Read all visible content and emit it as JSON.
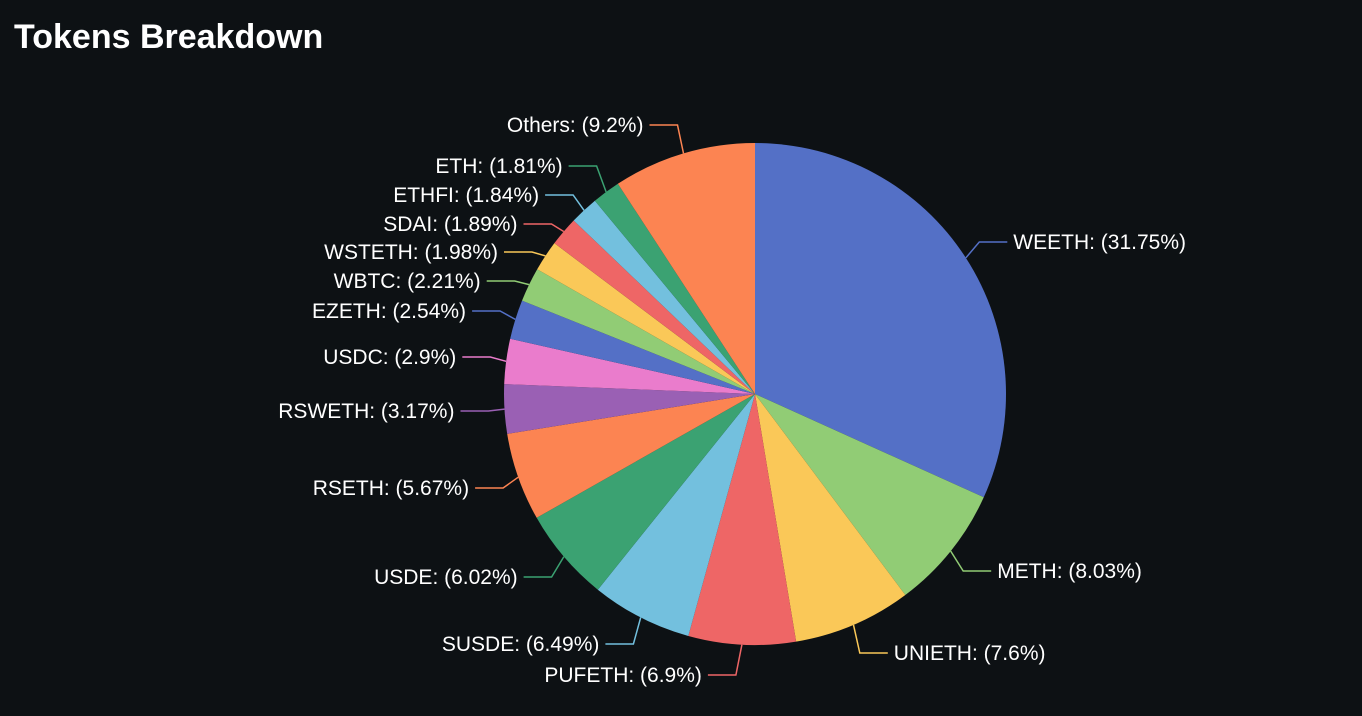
{
  "header": {
    "title": "Tokens Breakdown"
  },
  "chart_data": {
    "type": "pie",
    "title": "Tokens Breakdown",
    "start_angle_deg": 90,
    "direction": "clockwise",
    "slices": [
      {
        "label": "WEETH",
        "value": 31.75,
        "display": "WEETH: (31.75%)",
        "color": "#5470c6"
      },
      {
        "label": "METH",
        "value": 8.03,
        "display": "METH: (8.03%)",
        "color": "#91cc75"
      },
      {
        "label": "UNIETH",
        "value": 7.6,
        "display": "UNIETH: (7.6%)",
        "color": "#fac858"
      },
      {
        "label": "PUFETH",
        "value": 6.9,
        "display": "PUFETH: (6.9%)",
        "color": "#ee6666"
      },
      {
        "label": "SUSDE",
        "value": 6.49,
        "display": "SUSDE: (6.49%)",
        "color": "#73c0de"
      },
      {
        "label": "USDE",
        "value": 6.02,
        "display": "USDE: (6.02%)",
        "color": "#3ba272"
      },
      {
        "label": "RSETH",
        "value": 5.67,
        "display": "RSETH: (5.67%)",
        "color": "#fc8452"
      },
      {
        "label": "RSWETH",
        "value": 3.17,
        "display": "RSWETH: (3.17%)",
        "color": "#9a60b4"
      },
      {
        "label": "USDC",
        "value": 2.9,
        "display": "USDC: (2.9%)",
        "color": "#ea7ccc"
      },
      {
        "label": "EZETH",
        "value": 2.54,
        "display": "EZETH: (2.54%)",
        "color": "#5470c6"
      },
      {
        "label": "WBTC",
        "value": 2.21,
        "display": "WBTC: (2.21%)",
        "color": "#91cc75"
      },
      {
        "label": "WSTETH",
        "value": 1.98,
        "display": "WSTETH: (1.98%)",
        "color": "#fac858"
      },
      {
        "label": "SDAI",
        "value": 1.89,
        "display": "SDAI: (1.89%)",
        "color": "#ee6666"
      },
      {
        "label": "ETHFI",
        "value": 1.84,
        "display": "ETHFI: (1.84%)",
        "color": "#73c0de"
      },
      {
        "label": "ETH",
        "value": 1.81,
        "display": "ETH: (1.81%)",
        "color": "#3ba272"
      },
      {
        "label": "Others",
        "value": 9.2,
        "display": "Others: (9.2%)",
        "color": "#fc8452"
      }
    ]
  }
}
